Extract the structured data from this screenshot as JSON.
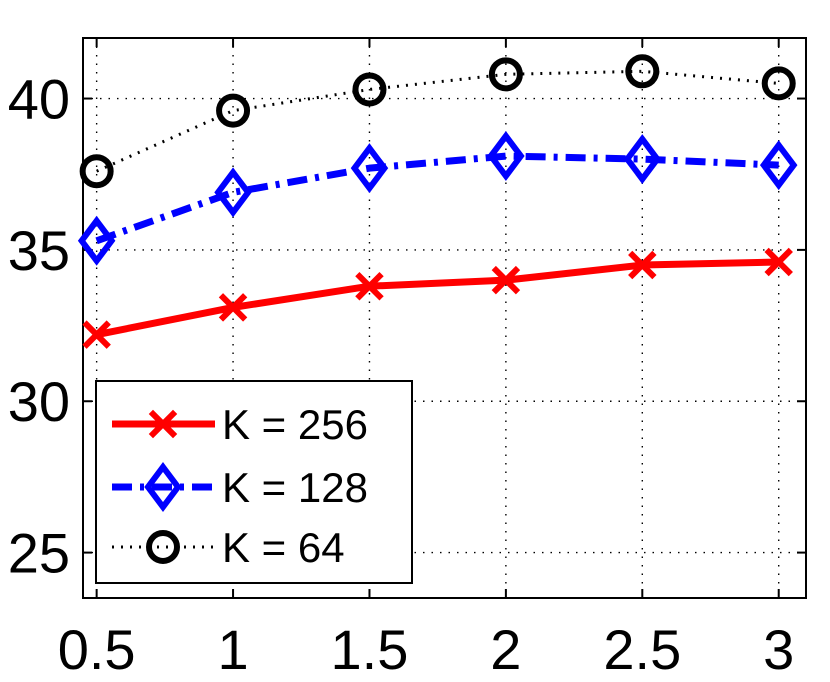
{
  "chart_data": {
    "type": "line",
    "title": "",
    "xlabel": "",
    "ylabel": "",
    "x": [
      0.5,
      1,
      1.5,
      2,
      2.5,
      3
    ],
    "x_ticks": [
      "0.5",
      "1",
      "1.5",
      "2",
      "2.5",
      "3"
    ],
    "y_ticks": [
      "25",
      "30",
      "35",
      "40"
    ],
    "xlim": [
      0.45,
      3.1
    ],
    "ylim": [
      23.5,
      42
    ],
    "grid": true,
    "legend_position": "bottom-left",
    "series": [
      {
        "name": "K = 256",
        "color": "#ff0000",
        "marker": "x",
        "line_style": "solid",
        "values": [
          32.2,
          33.1,
          33.8,
          34.0,
          34.5,
          34.6
        ]
      },
      {
        "name": "K = 128",
        "color": "#0000ff",
        "marker": "diamond",
        "line_style": "dashdot",
        "values": [
          35.3,
          36.9,
          37.7,
          38.1,
          38.0,
          37.8
        ]
      },
      {
        "name": "K = 64",
        "color": "#000000",
        "marker": "circle",
        "line_style": "dotted",
        "values": [
          37.6,
          39.6,
          40.3,
          40.8,
          40.9,
          40.5
        ]
      }
    ]
  }
}
